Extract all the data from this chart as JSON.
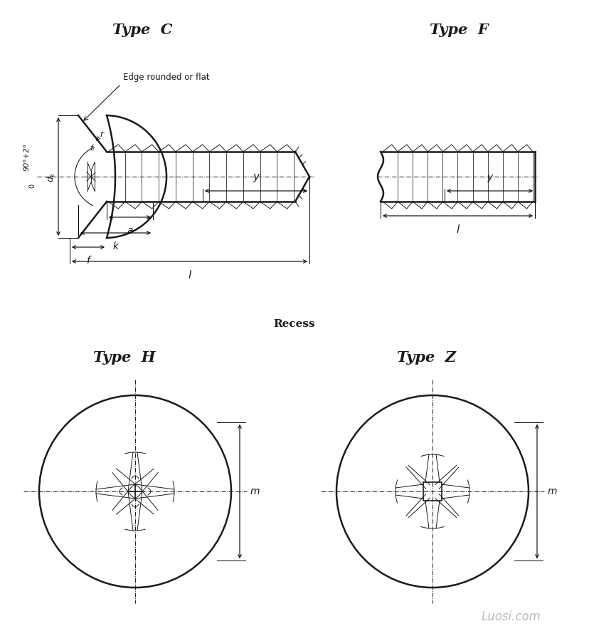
{
  "bg_color": "#ffffff",
  "line_color": "#1a1a1a",
  "title_typeC": "Type  C",
  "title_typeF": "Type  F",
  "title_typeH": "Type  H",
  "title_typeZ": "Type  Z",
  "recess_label": "Recess",
  "watermark": "Luosi.com",
  "annotation_edge": "Edge rounded or flat",
  "font_size_title": 15,
  "font_size_label": 10,
  "font_size_dim": 9,
  "font_size_watermark": 12
}
